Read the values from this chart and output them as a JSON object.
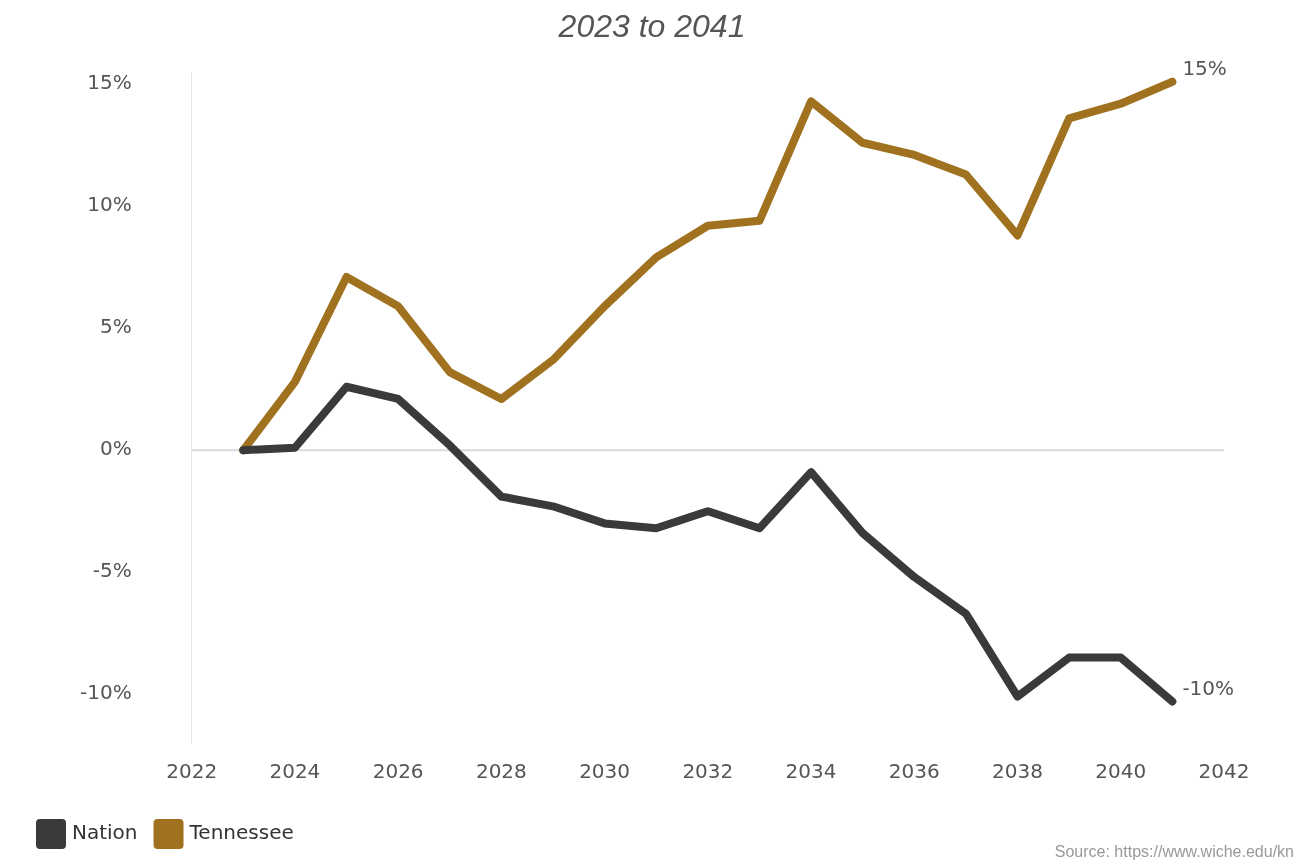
{
  "chart_data": {
    "type": "line",
    "title": "2023 to 2041",
    "x": [
      2023,
      2024,
      2025,
      2026,
      2027,
      2028,
      2029,
      2030,
      2031,
      2032,
      2033,
      2034,
      2035,
      2036,
      2037,
      2038,
      2039,
      2040,
      2041
    ],
    "series": [
      {
        "name": "Nation",
        "color": "#3a3a3c",
        "values": [
          0,
          0.1,
          2.6,
          2.1,
          0.2,
          -1.9,
          -2.3,
          -3.0,
          -3.2,
          -2.5,
          -3.2,
          -0.9,
          -3.4,
          -5.2,
          -6.7,
          -10.1,
          -8.5,
          -8.5,
          -10.3
        ],
        "value_labels": [
          null,
          null,
          null,
          null,
          null,
          null,
          null,
          null,
          null,
          null,
          null,
          null,
          null,
          null,
          null,
          null,
          null,
          null,
          "-10%"
        ]
      },
      {
        "name": "Tennessee",
        "color": "#a0721f",
        "values": [
          0,
          2.8,
          7.1,
          5.9,
          3.2,
          2.1,
          3.7,
          5.9,
          7.9,
          9.2,
          9.4,
          14.3,
          12.6,
          12.1,
          11.3,
          8.8,
          13.6,
          14.2,
          15.1
        ],
        "value_labels": [
          null,
          null,
          null,
          null,
          null,
          null,
          null,
          null,
          null,
          null,
          null,
          null,
          null,
          null,
          null,
          null,
          null,
          null,
          "15%"
        ]
      }
    ],
    "xlim": [
      2022,
      2042
    ],
    "xticks": [
      2022,
      2024,
      2026,
      2028,
      2030,
      2032,
      2034,
      2036,
      2038,
      2040,
      2042
    ],
    "ylim": [
      -12,
      15.5
    ],
    "yticks": [
      {
        "value": -10,
        "label": "-10%"
      },
      {
        "value": -5,
        "label": "-5%"
      },
      {
        "value": 0,
        "label": "0%"
      },
      {
        "value": 5,
        "label": "5%"
      },
      {
        "value": 10,
        "label": "10%"
      },
      {
        "value": 15,
        "label": "15%"
      }
    ],
    "grid": false,
    "legend": "bottom left",
    "marker": "none",
    "line_style": "solid",
    "ref_lines": [
      {
        "axis": "y",
        "value": 0,
        "color": "#d9d9d9"
      }
    ],
    "annotations": [
      "Source: https://www.wiche.edu/kn"
    ]
  }
}
